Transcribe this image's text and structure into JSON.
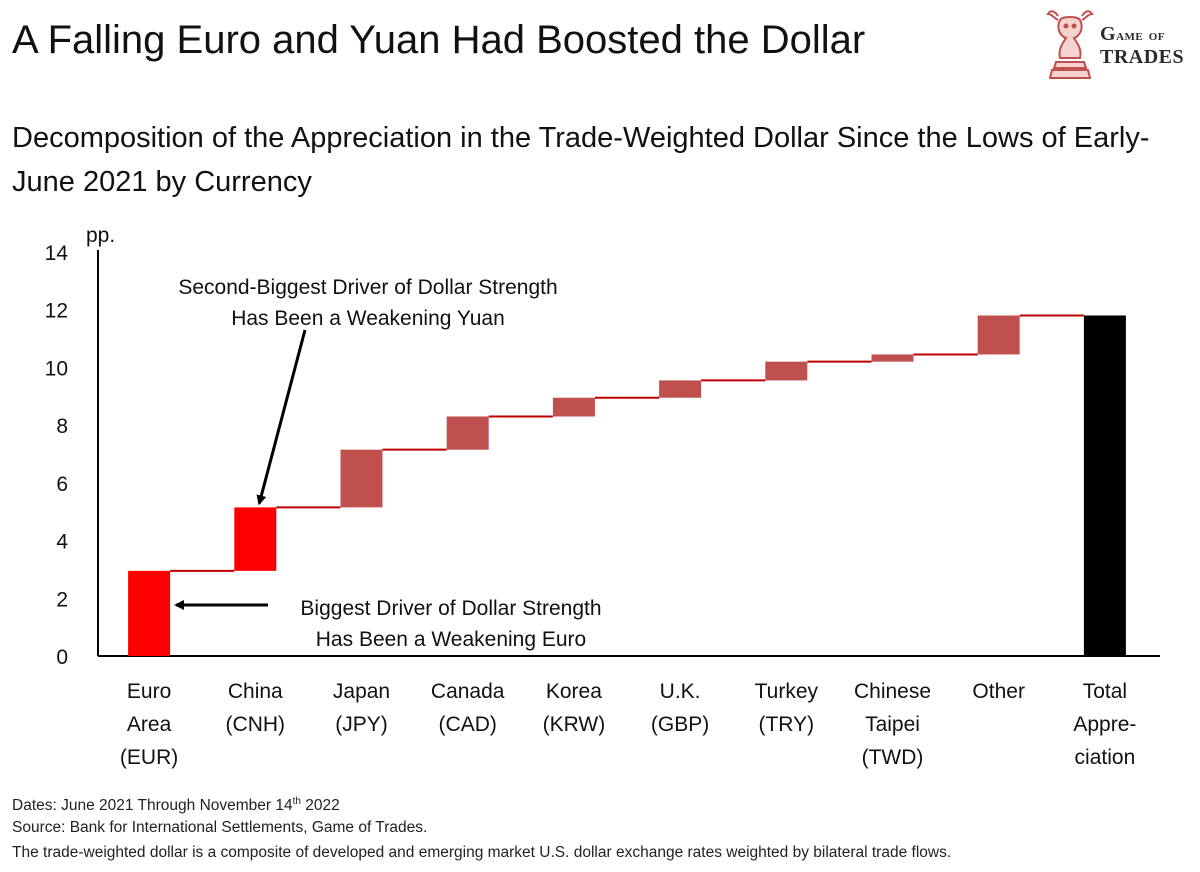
{
  "title": "A Falling Euro and Yuan Had Boosted the Dollar",
  "subtitle": "Decomposition of the Appreciation in the Trade-Weighted Dollar Since the Lows of Early-June 2021 by Currency",
  "logo": {
    "line1_a": "G",
    "line1_b": "AME",
    "line1_of": "OF",
    "line2": "TRADES",
    "icon": "chess-knight-bull-icon"
  },
  "chart_data": {
    "type": "waterfall",
    "y_unit_label": "pp.",
    "ylim": [
      0,
      14
    ],
    "yticks": [
      0,
      2,
      4,
      6,
      8,
      10,
      12,
      14
    ],
    "categories": [
      [
        "Euro",
        "Area",
        "(EUR)"
      ],
      [
        "China",
        "(CNH)"
      ],
      [
        "Japan",
        "(JPY)"
      ],
      [
        "Canada",
        "(CAD)"
      ],
      [
        "Korea",
        "(KRW)"
      ],
      [
        "U.K.",
        "(GBP)"
      ],
      [
        "Turkey",
        "(TRY)"
      ],
      [
        "Chinese",
        "Taipei",
        "(TWD)"
      ],
      [
        "Other"
      ],
      [
        "Total",
        "Appre-",
        "ciation"
      ]
    ],
    "contributions": [
      2.95,
      2.2,
      2.0,
      1.15,
      0.65,
      0.6,
      0.65,
      0.25,
      1.35,
      11.8
    ],
    "bar_colors": [
      "#ff0000",
      "#ff0000",
      "#c0504d",
      "#c0504d",
      "#c0504d",
      "#c0504d",
      "#c0504d",
      "#c0504d",
      "#c0504d",
      "#000000"
    ],
    "connector_color": "#c00000",
    "annotations": [
      {
        "lines": [
          "Second-Biggest Driver of Dollar Strength",
          "Has Been a Weakening Yuan"
        ],
        "target_category": 1
      },
      {
        "lines": [
          "Biggest Driver of Dollar Strength",
          "Has Been a Weakening Euro"
        ],
        "target_category": 0
      }
    ]
  },
  "footer": {
    "dates_prefix": "Dates: June 2021 Through November 14",
    "dates_sup": "th",
    "dates_suffix": " 2022",
    "source": "Source: Bank for International Settlements, Game of Trades.",
    "note": "The trade-weighted dollar is a composite of developed and emerging market U.S. dollar exchange rates weighted by bilateral trade flows."
  }
}
